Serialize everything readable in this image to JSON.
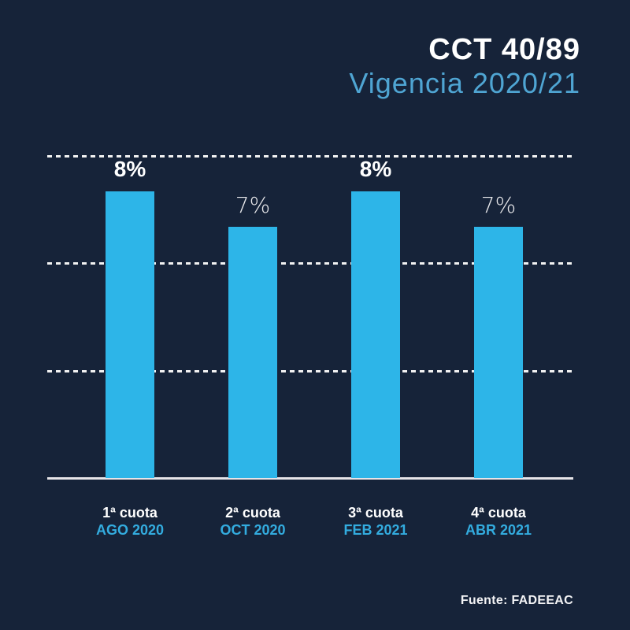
{
  "header": {
    "title": "CCT 40/89",
    "subtitle": "Vigencia 2020/21"
  },
  "footer": {
    "source": "Fuente: FADEEAC"
  },
  "colors": {
    "background": "#162339",
    "bar": "#2DB5E8",
    "title_white": "#FFFFFF",
    "subtitle_blue": "#4FA5D3",
    "date_label_blue": "#33ACDF",
    "gridline": "#F2F2F2",
    "axis": "#E6E4E8"
  },
  "chart_data": {
    "type": "bar",
    "title": "CCT 40/89",
    "subtitle": "Vigencia 2020/21",
    "categories": [
      "1ª cuota",
      "2ª cuota",
      "3ª cuota",
      "4ª cuota"
    ],
    "category_sublabels": [
      "AGO 2020",
      "OCT 2020",
      "FEB 2021",
      "ABR 2021"
    ],
    "values": [
      8,
      7,
      8,
      7
    ],
    "value_labels": [
      "8%",
      "7%",
      "8%",
      "7%"
    ],
    "value_label_bold": [
      true,
      false,
      true,
      false
    ],
    "unit": "percent",
    "ylim": [
      0,
      9.3
    ],
    "gridlines": [
      3,
      6,
      9
    ],
    "grid_style": "dashed",
    "legend_position": "none",
    "source": "Fuente: FADEEAC"
  }
}
